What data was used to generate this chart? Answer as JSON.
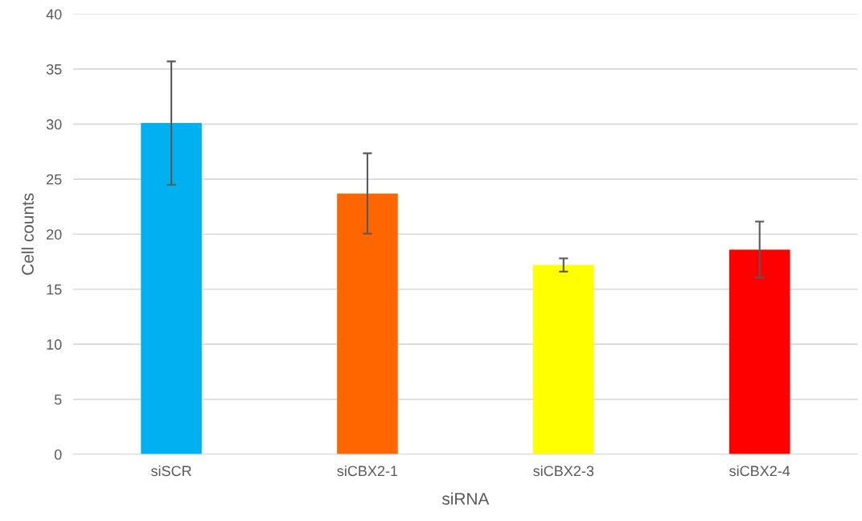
{
  "chart_data": {
    "type": "bar",
    "xlabel": "siRNA",
    "ylabel": "Cell counts",
    "categories": [
      "siSCR",
      "siCBX2-1",
      "siCBX2-3",
      "siCBX2-4"
    ],
    "values": [
      30.1,
      23.7,
      17.2,
      18.6
    ],
    "errors": [
      5.6,
      3.65,
      0.6,
      2.55
    ],
    "colors": [
      "#00b0f0",
      "#ff6600",
      "#ffff00",
      "#ff0000"
    ],
    "ylim": [
      0,
      40
    ],
    "yticks": [
      0,
      5,
      10,
      15,
      20,
      25,
      30,
      35,
      40
    ],
    "grid": "y"
  }
}
